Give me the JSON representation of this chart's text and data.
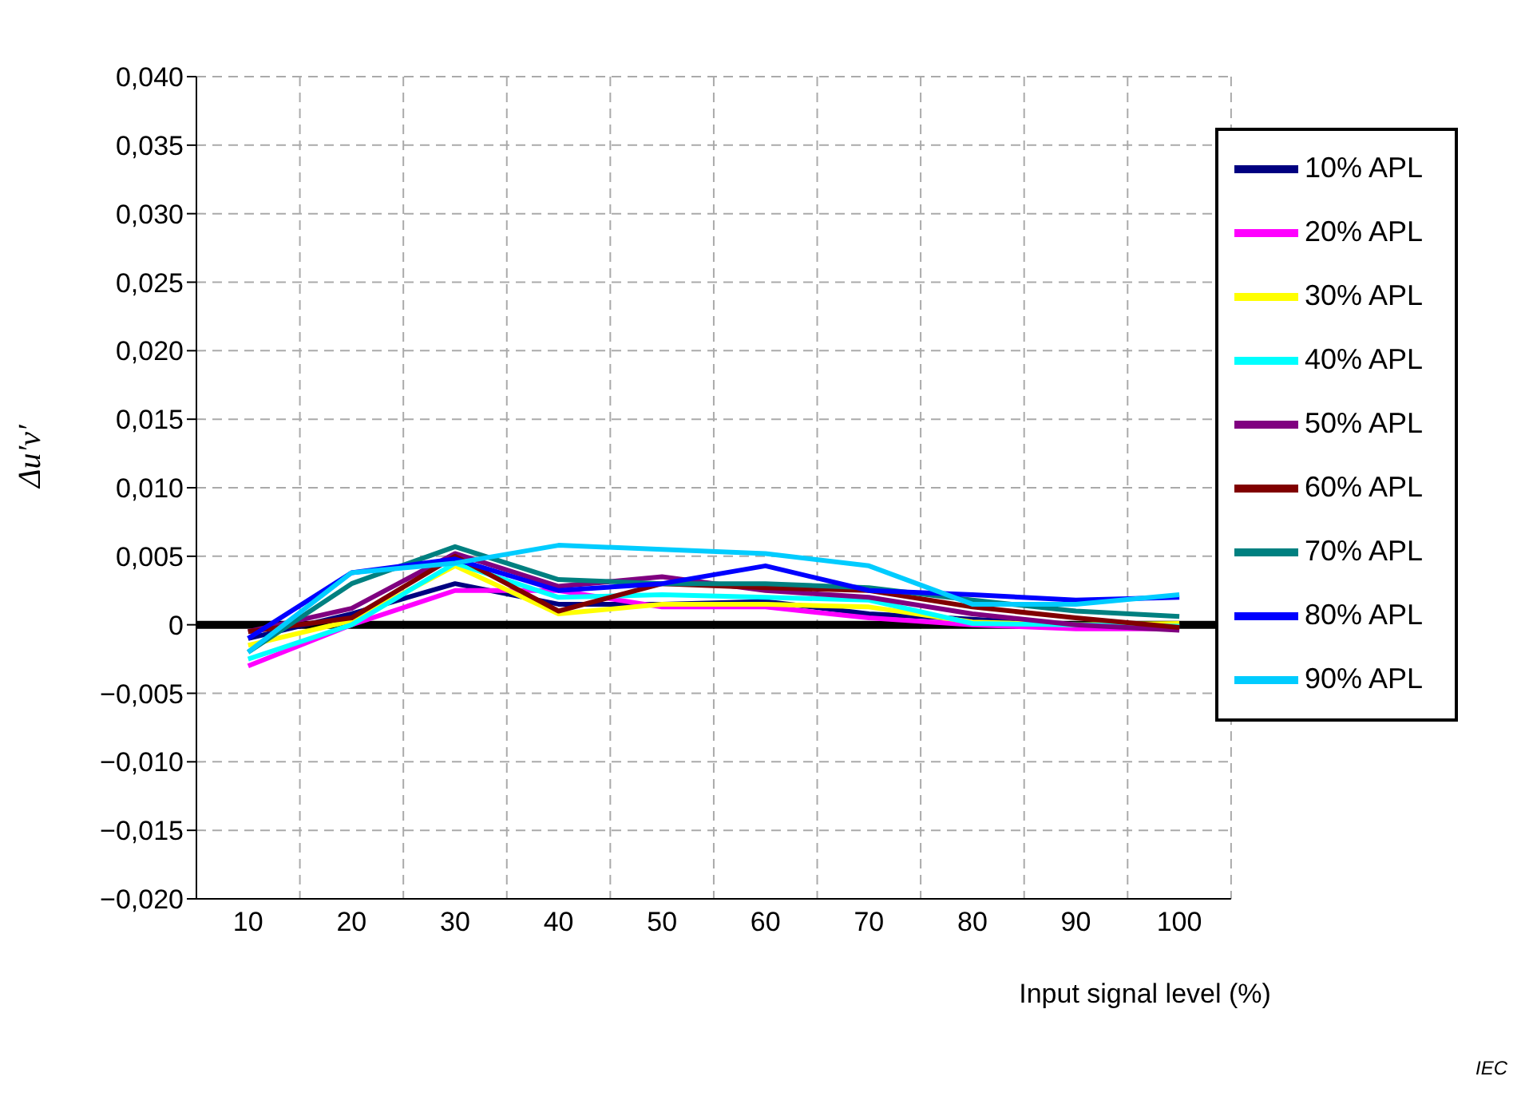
{
  "chart_data": {
    "type": "line",
    "xlabel": "Input signal level (%)",
    "ylabel": "Δu′v′",
    "categories": [
      "10",
      "20",
      "30",
      "40",
      "50",
      "60",
      "70",
      "80",
      "90",
      "100"
    ],
    "series": [
      {
        "name": "10% APL",
        "color": "#000080",
        "values": [
          -0.001,
          0.0008,
          0.003,
          0.0015,
          0.0015,
          0.0017,
          0.0008,
          0.0004,
          0.0,
          -0.0001
        ]
      },
      {
        "name": "20% APL",
        "color": "#ff00ff",
        "values": [
          -0.003,
          0.0,
          0.0025,
          0.0025,
          0.0013,
          0.0013,
          0.0005,
          0.0,
          -0.0003,
          -0.0003
        ]
      },
      {
        "name": "30% APL",
        "color": "#ffff00",
        "values": [
          -0.0015,
          0.0003,
          0.0043,
          0.0008,
          0.0015,
          0.0015,
          0.0013,
          0.0002,
          0.0,
          0.0001
        ]
      },
      {
        "name": "40% APL",
        "color": "#00ffff",
        "values": [
          -0.0025,
          0.0,
          0.0045,
          0.002,
          0.0022,
          0.002,
          0.0018,
          0.0001,
          0.0,
          -0.0001
        ]
      },
      {
        "name": "50% APL",
        "color": "#800080",
        "values": [
          -0.0005,
          0.0012,
          0.0052,
          0.0028,
          0.0035,
          0.0025,
          0.002,
          0.0008,
          0.0,
          -0.0004
        ]
      },
      {
        "name": "60% APL",
        "color": "#800000",
        "values": [
          -0.0005,
          0.0005,
          0.005,
          0.001,
          0.003,
          0.0027,
          0.0025,
          0.0013,
          0.0005,
          -0.0002
        ]
      },
      {
        "name": "70% APL",
        "color": "#008080",
        "values": [
          -0.002,
          0.003,
          0.0057,
          0.0033,
          0.003,
          0.003,
          0.0027,
          0.0018,
          0.001,
          0.0006
        ]
      },
      {
        "name": "80% APL",
        "color": "#0000ff",
        "values": [
          -0.001,
          0.0038,
          0.0048,
          0.0025,
          0.003,
          0.0043,
          0.0025,
          0.0022,
          0.0018,
          0.002
        ]
      },
      {
        "name": "90% APL",
        "color": "#00ccff",
        "values": [
          -0.002,
          0.0038,
          0.0045,
          0.0058,
          0.0055,
          0.0052,
          0.0043,
          0.0015,
          0.0015,
          0.0022
        ]
      }
    ],
    "ylim": [
      -0.02,
      0.04
    ],
    "yticks": [
      {
        "value": -0.02,
        "label": "−0,020"
      },
      {
        "value": -0.015,
        "label": "−0,015"
      },
      {
        "value": -0.01,
        "label": "−0,010"
      },
      {
        "value": -0.005,
        "label": "−0,005"
      },
      {
        "value": 0,
        "label": "0"
      },
      {
        "value": 0.005,
        "label": "0,005"
      },
      {
        "value": 0.01,
        "label": "0,010"
      },
      {
        "value": 0.015,
        "label": "0,015"
      },
      {
        "value": 0.02,
        "label": "0,020"
      },
      {
        "value": 0.025,
        "label": "0,025"
      },
      {
        "value": 0.03,
        "label": "0,030"
      },
      {
        "value": 0.035,
        "label": "0,035"
      },
      {
        "value": 0.04,
        "label": "0,040"
      }
    ],
    "ref_lines": [
      {
        "axis": "y",
        "value": 0,
        "label": null,
        "color": "#000000"
      }
    ],
    "grid": true,
    "legend": "top right",
    "marker": "none",
    "line_style": "solid",
    "annotations": [
      "IEC"
    ]
  }
}
